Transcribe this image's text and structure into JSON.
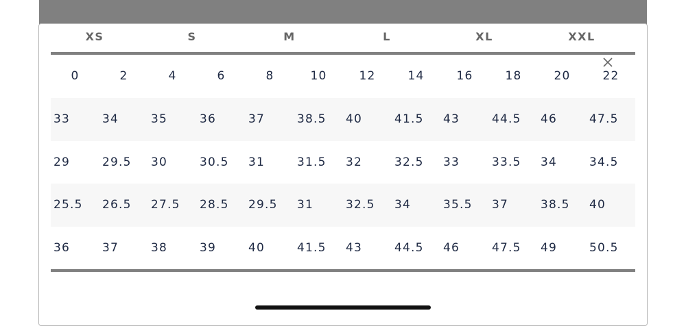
{
  "header": {
    "sizes": [
      "XS",
      "S",
      "M",
      "L",
      "XL",
      "XXL"
    ]
  },
  "table": {
    "rows": [
      [
        "0",
        "2",
        "4",
        "6",
        "8",
        "10",
        "12",
        "14",
        "16",
        "18",
        "20",
        "22"
      ],
      [
        "33",
        "34",
        "35",
        "36",
        "37",
        "38.5",
        "40",
        "41.5",
        "43",
        "44.5",
        "46",
        "47.5"
      ],
      [
        "29",
        "29.5",
        "30",
        "30.5",
        "31",
        "31.5",
        "32",
        "32.5",
        "33",
        "33.5",
        "34",
        "34.5"
      ],
      [
        "25.5",
        "26.5",
        "27.5",
        "28.5",
        "29.5",
        "31",
        "32.5",
        "34",
        "35.5",
        "37",
        "38.5",
        "40"
      ],
      [
        "36",
        "37",
        "38",
        "39",
        "40",
        "41.5",
        "43",
        "44.5",
        "46",
        "47.5",
        "49",
        "50.5"
      ]
    ]
  }
}
